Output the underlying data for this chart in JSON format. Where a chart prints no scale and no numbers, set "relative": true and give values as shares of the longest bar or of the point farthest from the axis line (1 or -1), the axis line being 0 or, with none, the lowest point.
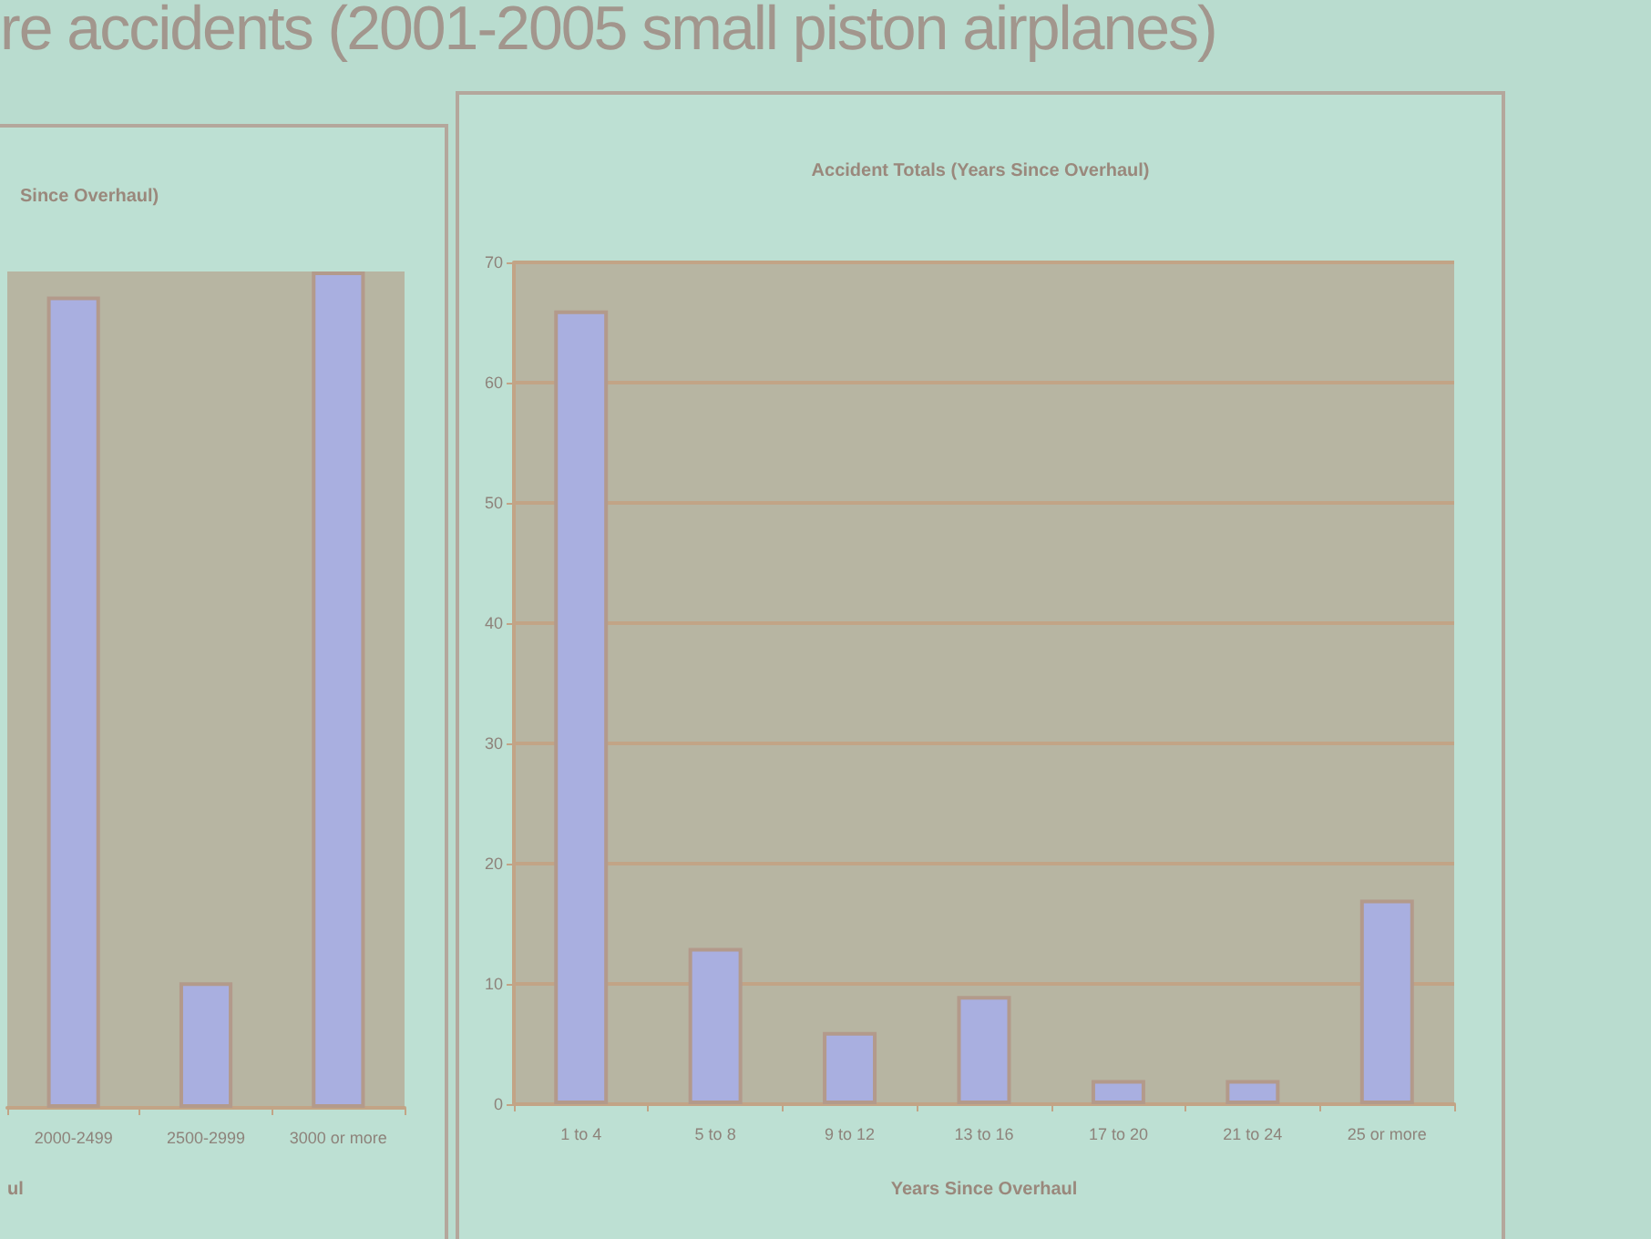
{
  "chart_data": [
    {
      "type": "bar",
      "title": "Since Overhaul)",
      "xlabel": "ul",
      "annotations": [
        "re accidents (2001-2005 small piston airplanes)"
      ],
      "categories": [
        "2000-2499",
        "2500-2999",
        "3000 or more"
      ],
      "values": [
        0.97,
        0.15,
        1
      ],
      "relative": true,
      "color": "#a9afe0"
    },
    {
      "type": "bar",
      "title": "Accident Totals (Years Since Overhaul)",
      "xlabel": "Years Since Overhaul",
      "categories": [
        "1 to 4",
        "5 to 8",
        "9 to 12",
        "13 to 16",
        "17 to 20",
        "21 to 24",
        "25 or more"
      ],
      "values": [
        66,
        13,
        6,
        9,
        2,
        2,
        17
      ],
      "color": "#a9afe0",
      "ylim": [
        0,
        70
      ],
      "yticks": [
        0,
        10,
        20,
        30,
        40,
        50,
        60,
        70
      ],
      "grid": "y"
    }
  ]
}
